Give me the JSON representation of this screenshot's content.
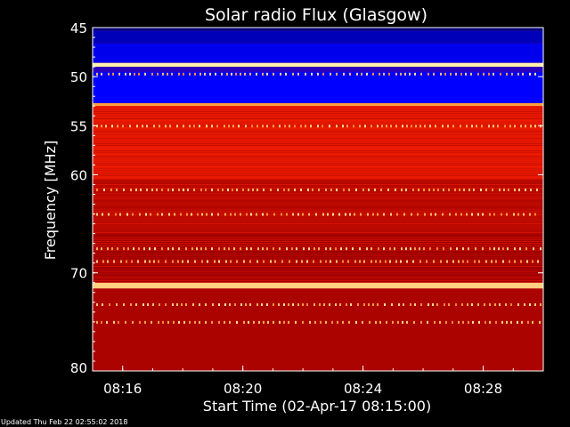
{
  "chart_data": {
    "type": "heatmap",
    "title": "Solar radio Flux (Glasgow)",
    "xlabel": "Start Time (02-Apr-17 08:15:00)",
    "ylabel": "Frequency [MHz]",
    "x_ticks": [
      "08:16",
      "08:20",
      "08:24",
      "08:28"
    ],
    "x_tick_minutes": [
      1,
      5,
      9,
      13
    ],
    "x_range_minutes": [
      0,
      15
    ],
    "y_ticks": [
      45,
      50,
      55,
      60,
      70,
      80
    ],
    "y_range": [
      45,
      80
    ],
    "colormap": [
      "#000050",
      "#0000ff",
      "#a00000",
      "#ff2000",
      "#ffa040",
      "#ffffc0"
    ],
    "bands": [
      {
        "from": 45,
        "to": 45.3,
        "level": 0.05
      },
      {
        "from": 45.3,
        "to": 46.6,
        "level": 0.12
      },
      {
        "from": 46.6,
        "to": 48.6,
        "level": 0.18
      },
      {
        "from": 48.6,
        "to": 49.0,
        "level": 0.97
      },
      {
        "from": 49.0,
        "to": 49.5,
        "level": 0.25
      },
      {
        "from": 49.5,
        "to": 52.7,
        "level": 0.2
      },
      {
        "from": 52.7,
        "to": 53.0,
        "level": 0.8
      },
      {
        "from": 53.0,
        "to": 60.5,
        "level": 0.55
      },
      {
        "from": 60.5,
        "to": 66.0,
        "level": 0.45
      },
      {
        "from": 66.0,
        "to": 71.0,
        "level": 0.4
      },
      {
        "from": 71.0,
        "to": 71.6,
        "level": 0.9
      },
      {
        "from": 71.6,
        "to": 80.0,
        "level": 0.42
      }
    ],
    "hot_lines": [
      49.7,
      55.0,
      61.5,
      64.0,
      67.5,
      68.8,
      73.2,
      75.0
    ],
    "footer": "Updated Thu Feb 22 02:55:02 2018"
  }
}
